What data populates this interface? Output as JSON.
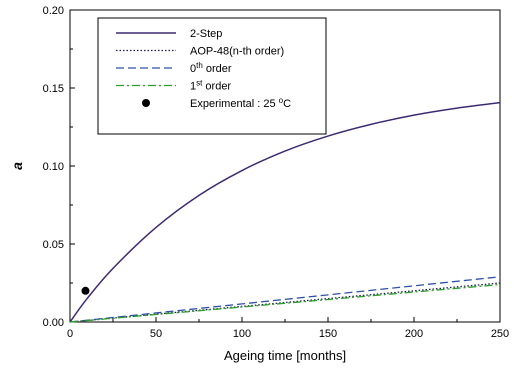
{
  "chart_data": {
    "type": "line",
    "title": "",
    "xlabel": "Ageing time [months]",
    "ylabel": "a",
    "xlim": [
      0,
      250
    ],
    "ylim": [
      0,
      0.2
    ],
    "xticks": [
      0,
      50,
      100,
      150,
      200,
      250
    ],
    "yticks": [
      0.0,
      0.05,
      0.1,
      0.15,
      0.2
    ],
    "xtick_labels": [
      "0",
      "50",
      "100",
      "150",
      "200",
      "250"
    ],
    "ytick_labels": [
      "0.00",
      "0.05",
      "0.10",
      "0.15",
      "0.20"
    ],
    "grid": false,
    "legend_position": "top-left",
    "series": [
      {
        "name": "2-Step",
        "style": "solid",
        "color": "#3d2a73",
        "x": [
          0,
          10,
          25,
          50,
          75,
          100,
          125,
          150,
          175,
          200,
          225,
          250
        ],
        "y": [
          0.0,
          0.0151,
          0.0344,
          0.0606,
          0.0812,
          0.0971,
          0.1096,
          0.1192,
          0.1267,
          0.1326,
          0.1371,
          0.1406
        ]
      },
      {
        "name": "AOP-48(n-th order)",
        "style": "dotted",
        "color": "#1a1a4a",
        "x": [
          0,
          50,
          100,
          150,
          200,
          250
        ],
        "y": [
          0.0,
          0.005,
          0.01,
          0.015,
          0.02,
          0.025
        ]
      },
      {
        "name": "0",
        "name_superscript": "th",
        "name_suffix": " order",
        "style": "dashed",
        "color": "#3050a8",
        "x": [
          0,
          50,
          100,
          150,
          200,
          250
        ],
        "y": [
          0.0,
          0.0058,
          0.0116,
          0.0174,
          0.0232,
          0.029
        ]
      },
      {
        "name": "1",
        "name_superscript": "st",
        "name_suffix": " order",
        "style": "dashdot",
        "color": "#2aa02a",
        "x": [
          0,
          50,
          100,
          150,
          200,
          250
        ],
        "y": [
          0.0,
          0.0048,
          0.0096,
          0.0144,
          0.0192,
          0.024
        ]
      },
      {
        "name": "Experimental : 25 ",
        "name_superscript": "o",
        "name_suffix": "C",
        "style": "marker",
        "color": "#000000",
        "x": [
          9
        ],
        "y": [
          0.02
        ]
      }
    ]
  }
}
